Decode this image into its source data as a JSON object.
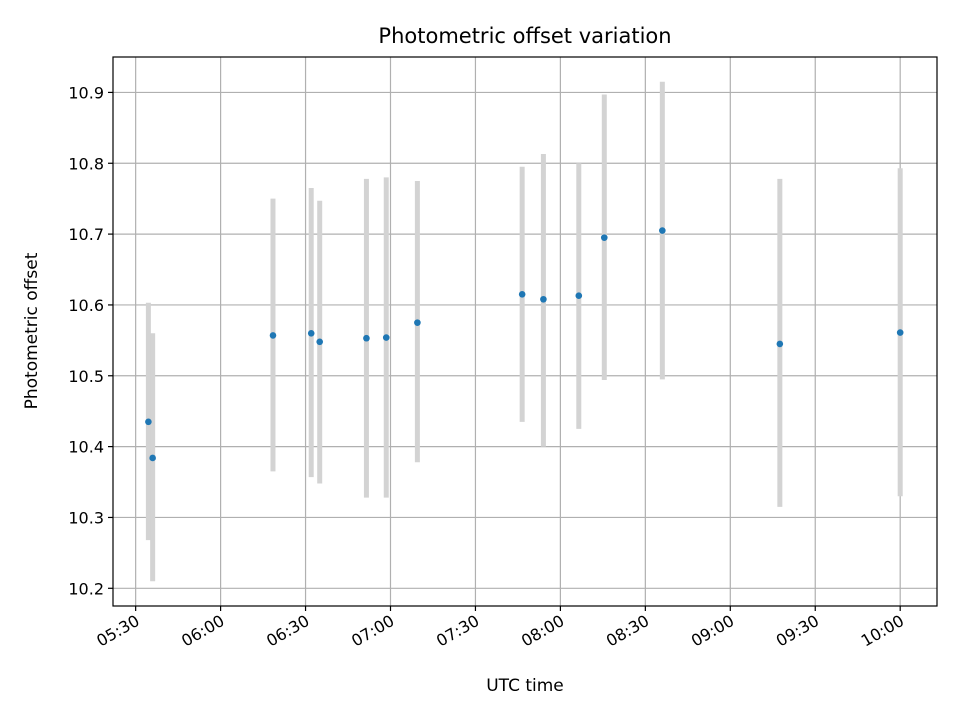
{
  "chart_data": {
    "type": "scatter",
    "title": "Photometric offset variation",
    "xlabel": "UTC time",
    "ylabel": "Photometric offset",
    "x_unit": "time",
    "xlim": [
      "05:22",
      "10:13"
    ],
    "ylim": [
      10.175,
      10.95
    ],
    "x_ticks": [
      "05:30",
      "06:00",
      "06:30",
      "07:00",
      "07:30",
      "08:00",
      "08:30",
      "09:00",
      "09:30",
      "10:00"
    ],
    "y_ticks": [
      "10.2",
      "10.3",
      "10.4",
      "10.5",
      "10.6",
      "10.7",
      "10.8",
      "10.9"
    ],
    "grid": true,
    "colors": {
      "points": "#1f77b4",
      "error_bars": "#d3d3d3",
      "grid": "#b0b0b0"
    },
    "series": [
      {
        "points": [
          {
            "x": "05:34:30",
            "y": 10.435,
            "err_low": 10.268,
            "err_high": 10.603
          },
          {
            "x": "05:36:00",
            "y": 10.384,
            "err_low": 10.21,
            "err_high": 10.56
          },
          {
            "x": "06:18:30",
            "y": 10.557,
            "err_low": 10.365,
            "err_high": 10.75
          },
          {
            "x": "06:32:00",
            "y": 10.56,
            "err_low": 10.357,
            "err_high": 10.765
          },
          {
            "x": "06:35:00",
            "y": 10.548,
            "err_low": 10.348,
            "err_high": 10.747
          },
          {
            "x": "06:51:30",
            "y": 10.553,
            "err_low": 10.328,
            "err_high": 10.778
          },
          {
            "x": "06:58:30",
            "y": 10.554,
            "err_low": 10.328,
            "err_high": 10.78
          },
          {
            "x": "07:09:30",
            "y": 10.575,
            "err_low": 10.378,
            "err_high": 10.775
          },
          {
            "x": "07:46:30",
            "y": 10.615,
            "err_low": 10.435,
            "err_high": 10.795
          },
          {
            "x": "07:54:00",
            "y": 10.608,
            "err_low": 10.4,
            "err_high": 10.813
          },
          {
            "x": "08:06:30",
            "y": 10.613,
            "err_low": 10.425,
            "err_high": 10.8
          },
          {
            "x": "08:15:30",
            "y": 10.695,
            "err_low": 10.494,
            "err_high": 10.897
          },
          {
            "x": "08:36:00",
            "y": 10.705,
            "err_low": 10.495,
            "err_high": 10.915
          },
          {
            "x": "09:17:30",
            "y": 10.545,
            "err_low": 10.315,
            "err_high": 10.778
          },
          {
            "x": "10:00:00",
            "y": 10.561,
            "err_low": 10.33,
            "err_high": 10.793
          }
        ]
      }
    ]
  }
}
